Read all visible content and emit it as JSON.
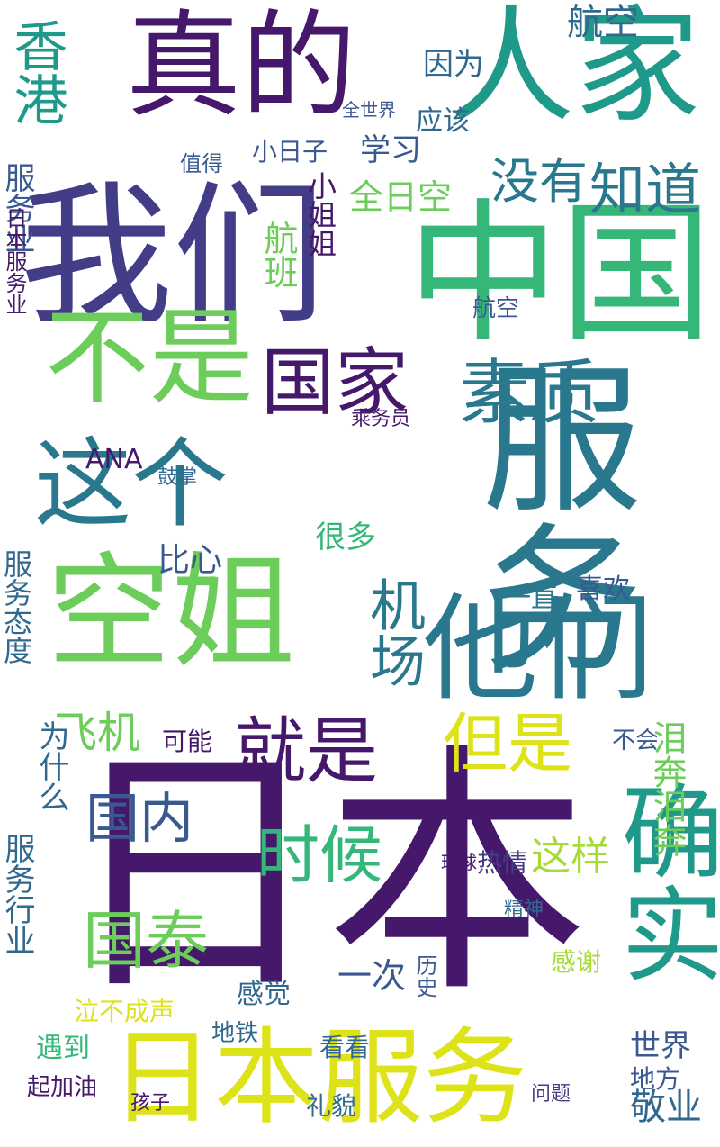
{
  "palette": {
    "dark_purple": "#46186b",
    "indigo": "#433d87",
    "slate_blue": "#3b5991",
    "steel_blue": "#31688e",
    "teal": "#29788e",
    "sea_green": "#1f998a",
    "green": "#35b779",
    "light_green": "#6ccd5a",
    "lime": "#a5db36",
    "yellow": "#dde318"
  },
  "words": [
    "日本",
    "服务",
    "中国",
    "我们",
    "人家",
    "空姐",
    "他们",
    "真的",
    "日本服务",
    "不是",
    "国泰",
    "这个",
    "国家",
    "素质",
    "香港",
    "确实",
    "就是",
    "但是",
    "时候",
    "航空",
    "国内",
    "知道",
    "没有",
    "机场",
    "比心",
    "飞机",
    "国泰",
    "全日空",
    "航班",
    "小姐姐",
    "服务业",
    "服务态度",
    "服务行业",
    "为什么",
    "泪奔泪奔",
    "这样",
    "一直",
    "喜欢",
    "不会",
    "热情",
    "鼓掌",
    "ANA",
    "可能",
    "乘务员",
    "很多",
    "航空",
    "学习",
    "小日子",
    "因为",
    "应该",
    "全世界",
    "值得",
    "感谢",
    "世界",
    "敬业",
    "地方",
    "日本服务业",
    "起加油",
    "遇到",
    "泣不成声",
    "孩子",
    "看看",
    "地铁",
    "礼貌",
    "一次",
    "感觉",
    "历史",
    "问题",
    "琉球",
    "精神"
  ]
}
